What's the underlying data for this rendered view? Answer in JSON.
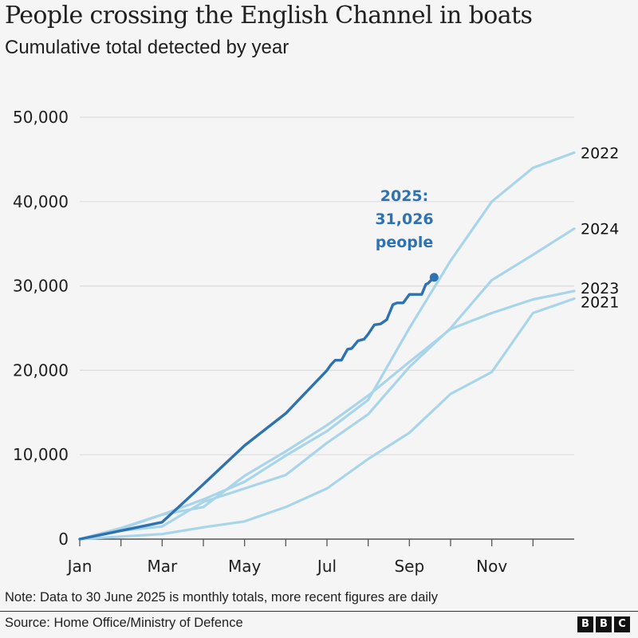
{
  "header": {
    "title": "People crossing the English Channel in boats",
    "subtitle": "Cumulative total detected by year"
  },
  "footer": {
    "note": "Note: Data to 30 June 2025 is monthly totals, more recent figures are daily",
    "source": "Source: Home Office/Ministry of Defence",
    "logo_letters": [
      "B",
      "B",
      "C"
    ]
  },
  "colors": {
    "highlight": "#2e72b0",
    "past_years": "#a8d5ea",
    "grid": "#dcdcdc",
    "axis": "#555555",
    "background": "#f5f5f5"
  },
  "chart_data": {
    "type": "line",
    "title": "People crossing the English Channel in boats",
    "subtitle": "Cumulative total detected by year",
    "xlabel": "",
    "ylabel": "",
    "x_unit": "month (0 = 1 Jan, 12 = 31 Dec)",
    "xlim": [
      0,
      12
    ],
    "ylim": [
      0,
      50000
    ],
    "y_ticks": [
      0,
      10000,
      20000,
      30000,
      40000,
      50000
    ],
    "y_tick_labels": [
      "0",
      "10,000",
      "20,000",
      "30,000",
      "40,000",
      "50,000"
    ],
    "x_ticks": [
      0,
      2,
      4,
      6,
      8,
      10
    ],
    "x_tick_labels": [
      "Jan",
      "Mar",
      "May",
      "Jul",
      "Sep",
      "Nov"
    ],
    "x_minor_ticks": [
      0,
      1,
      2,
      3,
      4,
      5,
      6,
      7,
      8,
      9,
      10,
      11
    ],
    "grid": true,
    "legend": "direct labels at line ends (right)",
    "series": [
      {
        "name": "2021",
        "label": "2021",
        "highlight": false,
        "x": [
          0,
          1,
          2,
          3,
          4,
          5,
          6,
          7,
          8,
          9,
          10,
          11,
          12
        ],
        "values": [
          0,
          300,
          600,
          1400,
          2100,
          3800,
          6000,
          9500,
          12600,
          17200,
          19800,
          26800,
          28500
        ]
      },
      {
        "name": "2022",
        "label": "2022",
        "highlight": false,
        "x": [
          0,
          1,
          2,
          3,
          4,
          5,
          6,
          7,
          8,
          9,
          10,
          11,
          12
        ],
        "values": [
          0,
          1300,
          2900,
          4700,
          6800,
          9900,
          12800,
          16500,
          25000,
          33000,
          40000,
          44000,
          45800
        ]
      },
      {
        "name": "2023",
        "label": "2023",
        "highlight": false,
        "x": [
          0,
          1,
          2,
          3,
          4,
          5,
          6,
          7,
          8,
          9,
          10,
          11,
          12
        ],
        "values": [
          0,
          1200,
          2900,
          3800,
          7500,
          10400,
          13500,
          17000,
          21000,
          24900,
          26800,
          28400,
          29400
        ]
      },
      {
        "name": "2024",
        "label": "2024",
        "highlight": false,
        "x": [
          0,
          1,
          2,
          3,
          4,
          5,
          6,
          7,
          8,
          9,
          10,
          11,
          12
        ],
        "values": [
          0,
          1000,
          1500,
          4400,
          6000,
          7600,
          11400,
          14800,
          20400,
          25000,
          30700,
          33700,
          36800
        ]
      },
      {
        "name": "2025",
        "label": "2025",
        "highlight": true,
        "x": [
          0,
          1,
          2,
          3,
          4,
          5,
          6,
          6.1,
          6.2,
          6.35,
          6.5,
          6.6,
          6.75,
          6.9,
          7.0,
          7.15,
          7.3,
          7.45,
          7.6,
          7.7,
          7.85,
          8.0,
          8.15,
          8.3,
          8.4,
          8.45,
          8.55,
          8.6
        ],
        "values": [
          0,
          1000,
          2000,
          6500,
          11100,
          14900,
          20000,
          20700,
          21200,
          21200,
          22500,
          22600,
          23500,
          23700,
          24300,
          25400,
          25500,
          26000,
          27800,
          28000,
          28000,
          29000,
          29000,
          29000,
          30200,
          30300,
          30800,
          31026
        ]
      }
    ],
    "annotations": [
      {
        "target_series": "2025",
        "lines": [
          "2025:",
          "31,026",
          "people"
        ],
        "value": 31026
      }
    ]
  }
}
